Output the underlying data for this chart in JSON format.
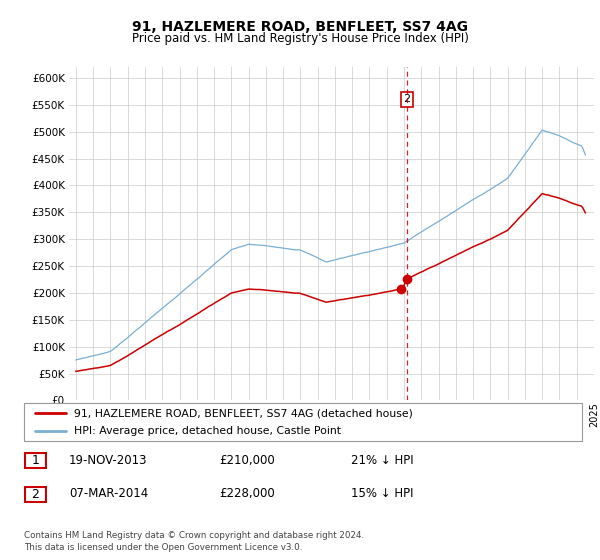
{
  "title": "91, HAZLEMERE ROAD, BENFLEET, SS7 4AG",
  "subtitle": "Price paid vs. HM Land Registry's House Price Index (HPI)",
  "legend_line1": "91, HAZLEMERE ROAD, BENFLEET, SS7 4AG (detached house)",
  "legend_line2": "HPI: Average price, detached house, Castle Point",
  "table_rows": [
    {
      "num": "1",
      "date": "19-NOV-2013",
      "price": "£210,000",
      "pct": "21% ↓ HPI"
    },
    {
      "num": "2",
      "date": "07-MAR-2014",
      "price": "£228,000",
      "pct": "15% ↓ HPI"
    }
  ],
  "footnote": "Contains HM Land Registry data © Crown copyright and database right 2024.\nThis data is licensed under the Open Government Licence v3.0.",
  "hpi_color": "#7bafd4",
  "price_color": "#cc0000",
  "vline_color": "#cc0000",
  "ylim_min": 0,
  "ylim_max": 620000,
  "sale1_year": 2013.875,
  "sale1_price": 210000,
  "sale2_year": 2014.167,
  "sale2_price": 228000,
  "xmin": 1994.6,
  "xmax": 2025.0
}
